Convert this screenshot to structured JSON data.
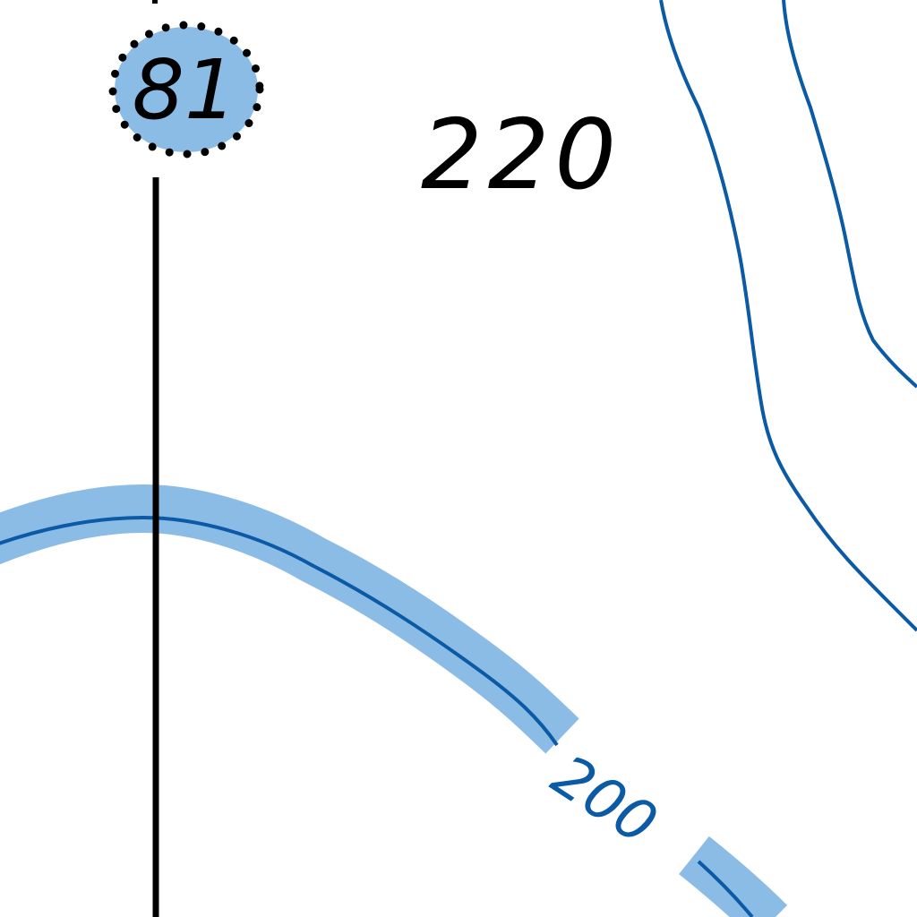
{
  "map": {
    "badge": {
      "label": "81"
    },
    "sounding": {
      "label": "220"
    },
    "contour": {
      "label": "200"
    },
    "colors": {
      "depth_contour": "#0a5aa6",
      "shallow_band": "#8bbce6",
      "badge_fill": "#8bbce6",
      "line_black": "#000000",
      "background": "#ffffff"
    }
  }
}
